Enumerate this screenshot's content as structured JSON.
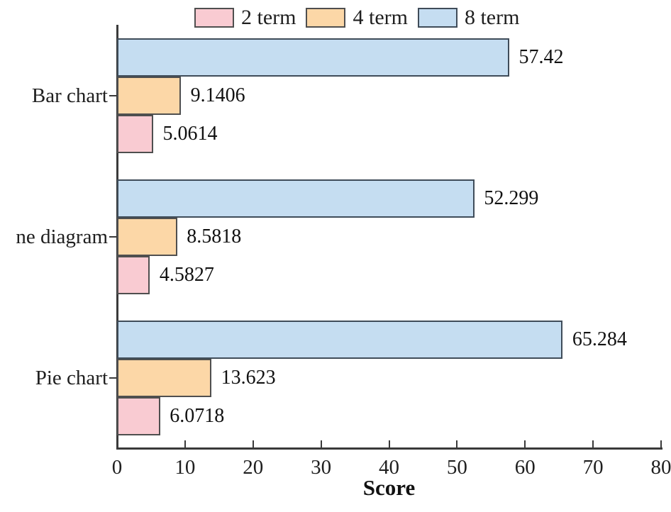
{
  "chart_data": {
    "type": "bar",
    "orientation": "horizontal",
    "title": "",
    "xlabel": "Score",
    "ylabel": "",
    "xlim": [
      0,
      80
    ],
    "xticks": [
      0,
      10,
      20,
      30,
      40,
      50,
      60,
      70,
      80
    ],
    "grid": false,
    "legend_position": "top",
    "axis_color": "#3a3a3a",
    "categories": [
      "Bar chart",
      "ne diagram",
      "Pie chart"
    ],
    "series": [
      {
        "name": "2 term",
        "fill": "#f9cbd2",
        "border": "#4f4f4f",
        "values": [
          5.0614,
          4.5827,
          6.0718
        ],
        "labels": [
          "5.0614",
          "4.5827",
          "6.0718"
        ]
      },
      {
        "name": "4 term",
        "fill": "#fcd7a7",
        "border": "#4f4f4f",
        "values": [
          9.1406,
          8.5818,
          13.623
        ],
        "labels": [
          "9.1406",
          "8.5818",
          "13.623"
        ]
      },
      {
        "name": "8 term",
        "fill": "#c5ddf1",
        "border": "#3f4c59",
        "values": [
          57.42,
          52.299,
          65.284
        ],
        "labels": [
          "57.42",
          "52.299",
          "65.284"
        ]
      }
    ],
    "series_display_order_top_to_bottom": [
      "8 term",
      "4 term",
      "2 term"
    ]
  }
}
